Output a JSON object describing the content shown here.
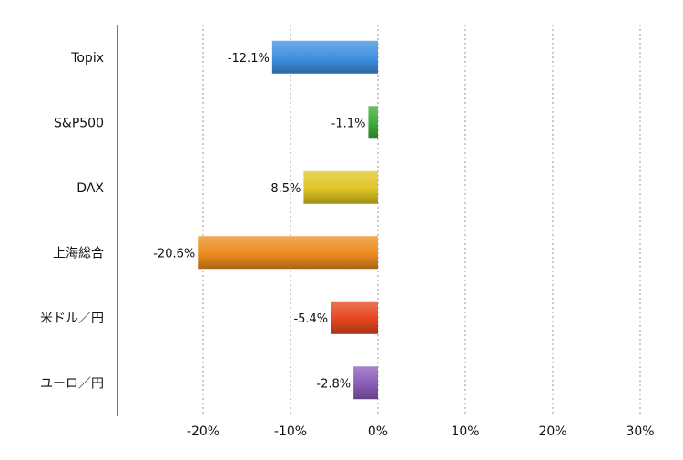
{
  "chart_data": {
    "type": "bar",
    "orientation": "horizontal",
    "categories": [
      "Topix",
      "S&P500",
      "DAX",
      "上海総合",
      "米ドル／円",
      "ユーロ／円"
    ],
    "values": [
      -12.1,
      -1.1,
      -8.5,
      -20.6,
      -5.4,
      -2.8
    ],
    "data_labels": [
      "-12.1%",
      "-1.1%",
      "-8.5%",
      "-20.6%",
      "-5.4%",
      "-2.8%"
    ],
    "bar_colors": [
      "#3f8fdf",
      "#3daa3a",
      "#e0c424",
      "#ec8c1e",
      "#e5461e",
      "#8a5cb8"
    ],
    "xlim": [
      -30,
      30
    ],
    "x_ticks": [
      -20,
      -10,
      0,
      10,
      20,
      30
    ],
    "x_tick_labels": [
      "-20%",
      "-10%",
      "0%",
      "10%",
      "20%",
      "30%"
    ],
    "grid": true,
    "legend": false
  }
}
